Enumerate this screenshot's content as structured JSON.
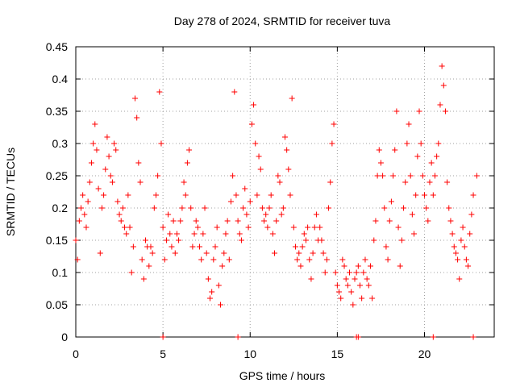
{
  "chart_data": {
    "type": "scatter",
    "title": "Day 278 of 2024, SRMTID for receiver tuva",
    "xlabel": "GPS time / hours",
    "ylabel": "SRMTID / TECUs",
    "xlim": [
      0,
      24
    ],
    "ylim": [
      0,
      0.45
    ],
    "xticks": [
      "0",
      "5",
      "10",
      "15",
      "20"
    ],
    "yticks": [
      "0",
      "0.05",
      "0.1",
      "0.15",
      "0.2",
      "0.25",
      "0.3",
      "0.35",
      "0.4",
      "0.45"
    ],
    "grid": true,
    "legend": "none",
    "marker": "+",
    "color": "#ff0000",
    "series": [
      {
        "x": [
          0.0,
          0.1,
          0.2,
          0.3,
          0.4,
          0.5,
          0.6,
          0.7,
          0.8,
          0.9,
          1.0,
          1.1,
          1.2,
          1.3,
          1.4,
          1.5,
          1.6,
          1.7,
          1.8,
          1.9,
          2.0,
          2.1,
          2.2,
          2.3,
          2.4,
          2.5,
          2.6,
          2.7,
          2.8,
          2.9,
          3.0,
          3.1,
          3.2,
          3.3,
          3.4,
          3.5,
          3.6,
          3.7,
          3.8,
          3.9,
          4.0,
          4.1,
          4.2,
          4.3,
          4.4,
          4.5,
          4.6,
          4.7,
          4.8,
          4.9,
          5.0,
          5.1,
          5.2,
          5.3,
          5.4,
          5.5,
          5.6,
          5.7,
          5.8,
          5.9,
          6.0,
          6.1,
          6.2,
          6.3,
          6.4,
          6.5,
          6.6,
          6.7,
          6.8,
          6.9,
          7.0,
          7.1,
          7.2,
          7.3,
          7.4,
          7.5,
          7.6,
          7.7,
          7.8,
          7.9,
          8.0,
          8.1,
          8.2,
          8.3,
          8.4,
          8.5,
          8.6,
          8.7,
          8.8,
          8.9,
          9.0,
          9.1,
          9.2,
          9.3,
          9.4,
          9.5,
          9.6,
          9.7,
          9.8,
          9.9,
          10.0,
          10.1,
          10.2,
          10.3,
          10.4,
          10.5,
          10.6,
          10.7,
          10.8,
          10.9,
          11.0,
          11.1,
          11.2,
          11.3,
          11.4,
          11.5,
          11.6,
          11.7,
          11.8,
          11.9,
          12.0,
          12.1,
          12.2,
          12.3,
          12.4,
          12.5,
          12.6,
          12.7,
          12.8,
          12.9,
          13.0,
          13.1,
          13.2,
          13.3,
          13.4,
          13.5,
          13.6,
          13.7,
          13.8,
          13.9,
          14.0,
          14.1,
          14.2,
          14.3,
          14.4,
          14.5,
          14.6,
          14.7,
          14.8,
          14.9,
          15.0,
          15.1,
          15.2,
          15.3,
          15.4,
          15.5,
          15.6,
          15.7,
          15.8,
          15.9,
          16.0,
          16.1,
          16.2,
          16.3,
          16.4,
          16.5,
          16.6,
          16.7,
          16.8,
          16.9,
          17.0,
          17.1,
          17.2,
          17.3,
          17.4,
          17.5,
          17.6,
          17.7,
          17.8,
          17.9,
          18.0,
          18.1,
          18.2,
          18.3,
          18.4,
          18.5,
          18.6,
          18.7,
          18.8,
          18.9,
          19.0,
          19.1,
          19.2,
          19.3,
          19.4,
          19.5,
          19.6,
          19.7,
          19.8,
          19.9,
          20.0,
          20.1,
          20.2,
          20.3,
          20.4,
          20.5,
          20.6,
          20.7,
          20.8,
          20.9,
          21.0,
          21.1,
          21.2,
          21.3,
          21.4,
          21.5,
          21.6,
          21.7,
          21.8,
          21.9,
          22.0,
          22.1,
          22.2,
          22.3,
          22.4,
          22.5,
          22.6,
          22.7,
          22.8,
          23.0,
          5.0,
          9.3,
          16.1,
          16.2,
          20.5,
          22.8
        ],
        "y": [
          0.15,
          0.12,
          0.18,
          0.2,
          0.22,
          0.19,
          0.17,
          0.21,
          0.24,
          0.27,
          0.3,
          0.33,
          0.29,
          0.23,
          0.13,
          0.2,
          0.22,
          0.26,
          0.31,
          0.28,
          0.25,
          0.24,
          0.3,
          0.29,
          0.21,
          0.19,
          0.18,
          0.2,
          0.17,
          0.16,
          0.22,
          0.17,
          0.1,
          0.14,
          0.37,
          0.34,
          0.27,
          0.24,
          0.12,
          0.09,
          0.15,
          0.14,
          0.11,
          0.14,
          0.13,
          0.2,
          0.22,
          0.25,
          0.38,
          0.3,
          0.17,
          0.12,
          0.15,
          0.19,
          0.16,
          0.14,
          0.18,
          0.13,
          0.16,
          0.15,
          0.18,
          0.2,
          0.24,
          0.22,
          0.27,
          0.29,
          0.2,
          0.14,
          0.16,
          0.18,
          0.17,
          0.14,
          0.12,
          0.16,
          0.2,
          0.13,
          0.09,
          0.06,
          0.07,
          0.12,
          0.14,
          0.17,
          0.08,
          0.05,
          0.11,
          0.13,
          0.16,
          0.18,
          0.12,
          0.21,
          0.25,
          0.38,
          0.22,
          0.18,
          0.16,
          0.15,
          0.2,
          0.23,
          0.19,
          0.17,
          0.21,
          0.33,
          0.36,
          0.3,
          0.22,
          0.28,
          0.26,
          0.2,
          0.18,
          0.19,
          0.17,
          0.2,
          0.22,
          0.16,
          0.13,
          0.18,
          0.25,
          0.24,
          0.19,
          0.2,
          0.31,
          0.29,
          0.26,
          0.22,
          0.37,
          0.17,
          0.14,
          0.12,
          0.13,
          0.11,
          0.14,
          0.16,
          0.15,
          0.17,
          0.12,
          0.09,
          0.13,
          0.17,
          0.19,
          0.15,
          0.17,
          0.15,
          0.13,
          0.1,
          0.12,
          0.2,
          0.24,
          0.3,
          0.33,
          0.1,
          0.08,
          0.07,
          0.06,
          0.12,
          0.11,
          0.09,
          0.08,
          0.1,
          0.07,
          0.05,
          0.09,
          0.1,
          0.11,
          0.08,
          0.06,
          0.1,
          0.12,
          0.09,
          0.08,
          0.11,
          0.06,
          0.15,
          0.18,
          0.25,
          0.29,
          0.27,
          0.25,
          0.2,
          0.14,
          0.12,
          0.18,
          0.21,
          0.25,
          0.29,
          0.35,
          0.17,
          0.11,
          0.15,
          0.2,
          0.24,
          0.3,
          0.33,
          0.25,
          0.19,
          0.16,
          0.22,
          0.28,
          0.35,
          0.3,
          0.25,
          0.22,
          0.2,
          0.18,
          0.24,
          0.27,
          0.22,
          0.25,
          0.28,
          0.3,
          0.36,
          0.42,
          0.39,
          0.35,
          0.24,
          0.2,
          0.18,
          0.16,
          0.14,
          0.13,
          0.12,
          0.09,
          0.15,
          0.17,
          0.14,
          0.12,
          0.11,
          0.16,
          0.19,
          0.22,
          0.25,
          0.0,
          0.0,
          0.0,
          0.0,
          0.0,
          0.0
        ]
      }
    ]
  }
}
